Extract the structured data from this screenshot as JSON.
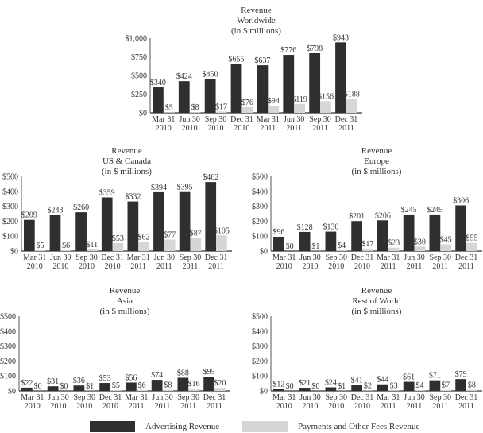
{
  "colors": {
    "advertising": "#2f2f2f",
    "payments": "#d6d6d6",
    "axis": "#555555"
  },
  "legend": [
    {
      "label": "Advertising Revenue",
      "color": "#2f2f2f"
    },
    {
      "label": "Payments and Other Fees Revenue",
      "color": "#d6d6d6"
    }
  ],
  "chart_data": [
    {
      "id": "worldwide",
      "type": "bar",
      "title": [
        "Revenue",
        "Worldwide",
        "(in $ millions)"
      ],
      "categories": [
        [
          "Mar 31",
          "2010"
        ],
        [
          "Jun 30",
          "2010"
        ],
        [
          "Sep 30",
          "2010"
        ],
        [
          "Dec 31",
          "2010"
        ],
        [
          "Mar 31",
          "2011"
        ],
        [
          "Jun 30",
          "2011"
        ],
        [
          "Sep 30",
          "2011"
        ],
        [
          "Dec 31",
          "2011"
        ]
      ],
      "yticks": [
        "$0",
        "$250",
        "$500",
        "$750",
        "$1,000"
      ],
      "ylim": [
        0,
        1000
      ],
      "series": [
        {
          "name": "Advertising Revenue",
          "values": [
            340,
            424,
            450,
            655,
            637,
            776,
            798,
            943
          ],
          "labels": [
            "$340",
            "$424",
            "$450",
            "$655",
            "$637",
            "$776",
            "$798",
            "$943"
          ]
        },
        {
          "name": "Payments and Other Fees Revenue",
          "values": [
            5,
            8,
            17,
            76,
            94,
            119,
            156,
            188
          ],
          "labels": [
            "$5",
            "$8",
            "$17",
            "$76",
            "$94",
            "$119",
            "$156",
            "$188"
          ]
        }
      ]
    },
    {
      "id": "us-canada",
      "type": "bar",
      "title": [
        "Revenue",
        "US & Canada",
        "(in $ millions)"
      ],
      "categories": [
        [
          "Mar 31",
          "2010"
        ],
        [
          "Jun 30",
          "2010"
        ],
        [
          "Sep 30",
          "2010"
        ],
        [
          "Dec 31",
          "2010"
        ],
        [
          "Mar 31",
          "2011"
        ],
        [
          "Jun 30",
          "2011"
        ],
        [
          "Sep 30",
          "2011"
        ],
        [
          "Dec 31",
          "2011"
        ]
      ],
      "yticks": [
        "$0",
        "$100",
        "$200",
        "$300",
        "$400",
        "$500"
      ],
      "ylim": [
        0,
        500
      ],
      "series": [
        {
          "name": "Advertising Revenue",
          "values": [
            209,
            243,
            260,
            359,
            332,
            394,
            395,
            462
          ],
          "labels": [
            "$209",
            "$243",
            "$260",
            "$359",
            "$332",
            "$394",
            "$395",
            "$462"
          ]
        },
        {
          "name": "Payments and Other Fees Revenue",
          "values": [
            5,
            6,
            11,
            53,
            62,
            77,
            87,
            105
          ],
          "labels": [
            "$5",
            "$6",
            "$11",
            "$53",
            "$62",
            "$77",
            "$87",
            "$105"
          ]
        }
      ]
    },
    {
      "id": "europe",
      "type": "bar",
      "title": [
        "Revenue",
        "Europe",
        "(in $ millions)"
      ],
      "categories": [
        [
          "Mar 31",
          "2010"
        ],
        [
          "Jun 30",
          "2010"
        ],
        [
          "Sep 30",
          "2010"
        ],
        [
          "Dec 31",
          "2010"
        ],
        [
          "Mar 31",
          "2011"
        ],
        [
          "Jun 30",
          "2011"
        ],
        [
          "Sep 30",
          "2011"
        ],
        [
          "Dec 31",
          "2011"
        ]
      ],
      "yticks": [
        "$0",
        "$100",
        "$200",
        "$300",
        "$400",
        "$500"
      ],
      "ylim": [
        0,
        500
      ],
      "series": [
        {
          "name": "Advertising Revenue",
          "values": [
            96,
            128,
            130,
            201,
            206,
            245,
            245,
            306
          ],
          "labels": [
            "$96",
            "$128",
            "$130",
            "$201",
            "$206",
            "$245",
            "$245",
            "$306"
          ]
        },
        {
          "name": "Payments and Other Fees Revenue",
          "values": [
            0,
            1,
            4,
            17,
            23,
            30,
            45,
            55
          ],
          "labels": [
            "$0",
            "$1",
            "$4",
            "$17",
            "$23",
            "$30",
            "$45",
            "$55"
          ]
        }
      ]
    },
    {
      "id": "asia",
      "type": "bar",
      "title": [
        "Revenue",
        "Asia",
        "(in $ millions)"
      ],
      "categories": [
        [
          "Mar 31",
          "2010"
        ],
        [
          "Jun 30",
          "2010"
        ],
        [
          "Sep 30",
          "2010"
        ],
        [
          "Dec 31",
          "2010"
        ],
        [
          "Mar 31",
          "2011"
        ],
        [
          "Jun 30",
          "2011"
        ],
        [
          "Sep 30",
          "2011"
        ],
        [
          "Dec 31",
          "2011"
        ]
      ],
      "yticks": [
        "$0",
        "$100",
        "$200",
        "$300",
        "$400",
        "$500"
      ],
      "ylim": [
        0,
        500
      ],
      "series": [
        {
          "name": "Advertising Revenue",
          "values": [
            22,
            31,
            36,
            53,
            56,
            74,
            88,
            95
          ],
          "labels": [
            "$22",
            "$31",
            "$36",
            "$53",
            "$56",
            "$74",
            "$88",
            "$95"
          ]
        },
        {
          "name": "Payments and Other Fees Revenue",
          "values": [
            0,
            0,
            1,
            5,
            6,
            8,
            16,
            20
          ],
          "labels": [
            "$0",
            "$0",
            "$1",
            "$5",
            "$6",
            "$8",
            "$16",
            "$20"
          ]
        }
      ]
    },
    {
      "id": "rest-of-world",
      "type": "bar",
      "title": [
        "Revenue",
        "Rest of World",
        "(in $ millions)"
      ],
      "categories": [
        [
          "Mar 31",
          "2010"
        ],
        [
          "Jun 30",
          "2010"
        ],
        [
          "Sep 30",
          "2010"
        ],
        [
          "Dec 31",
          "2010"
        ],
        [
          "Mar 31",
          "2011"
        ],
        [
          "Jun 30",
          "2011"
        ],
        [
          "Sep 30",
          "2011"
        ],
        [
          "Dec 31",
          "2011"
        ]
      ],
      "yticks": [
        "$0",
        "$100",
        "$200",
        "$300",
        "$400",
        "$500"
      ],
      "ylim": [
        0,
        500
      ],
      "series": [
        {
          "name": "Advertising Revenue",
          "values": [
            12,
            21,
            24,
            41,
            44,
            61,
            71,
            79
          ],
          "labels": [
            "$12",
            "$21",
            "$24",
            "$41",
            "$44",
            "$61",
            "$71",
            "$79"
          ]
        },
        {
          "name": "Payments and Other Fees Revenue",
          "values": [
            0,
            0,
            1,
            2,
            3,
            4,
            7,
            8
          ],
          "labels": [
            "$0",
            "$0",
            "$1",
            "$2",
            "$3",
            "$4",
            "$7",
            "$8"
          ]
        }
      ]
    }
  ]
}
